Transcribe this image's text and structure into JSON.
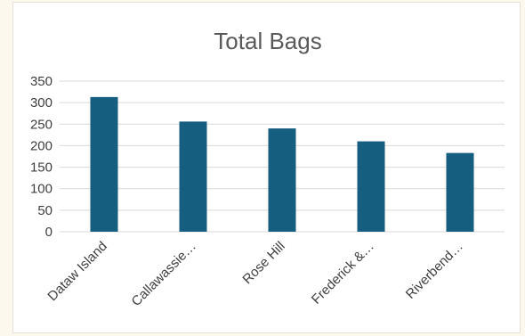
{
  "chart_data": {
    "type": "bar",
    "title": "Total Bags",
    "categories": [
      "Dataw Island",
      "Callawassie…",
      "Rose Hill",
      "Frederick &…",
      "Riverbend…"
    ],
    "values": [
      313,
      256,
      240,
      210,
      183
    ],
    "ylim": [
      0,
      350
    ],
    "yticks": [
      0,
      50,
      100,
      150,
      200,
      250,
      300,
      350
    ],
    "grid": true,
    "legend": "none",
    "bar_color": "#155e80"
  }
}
